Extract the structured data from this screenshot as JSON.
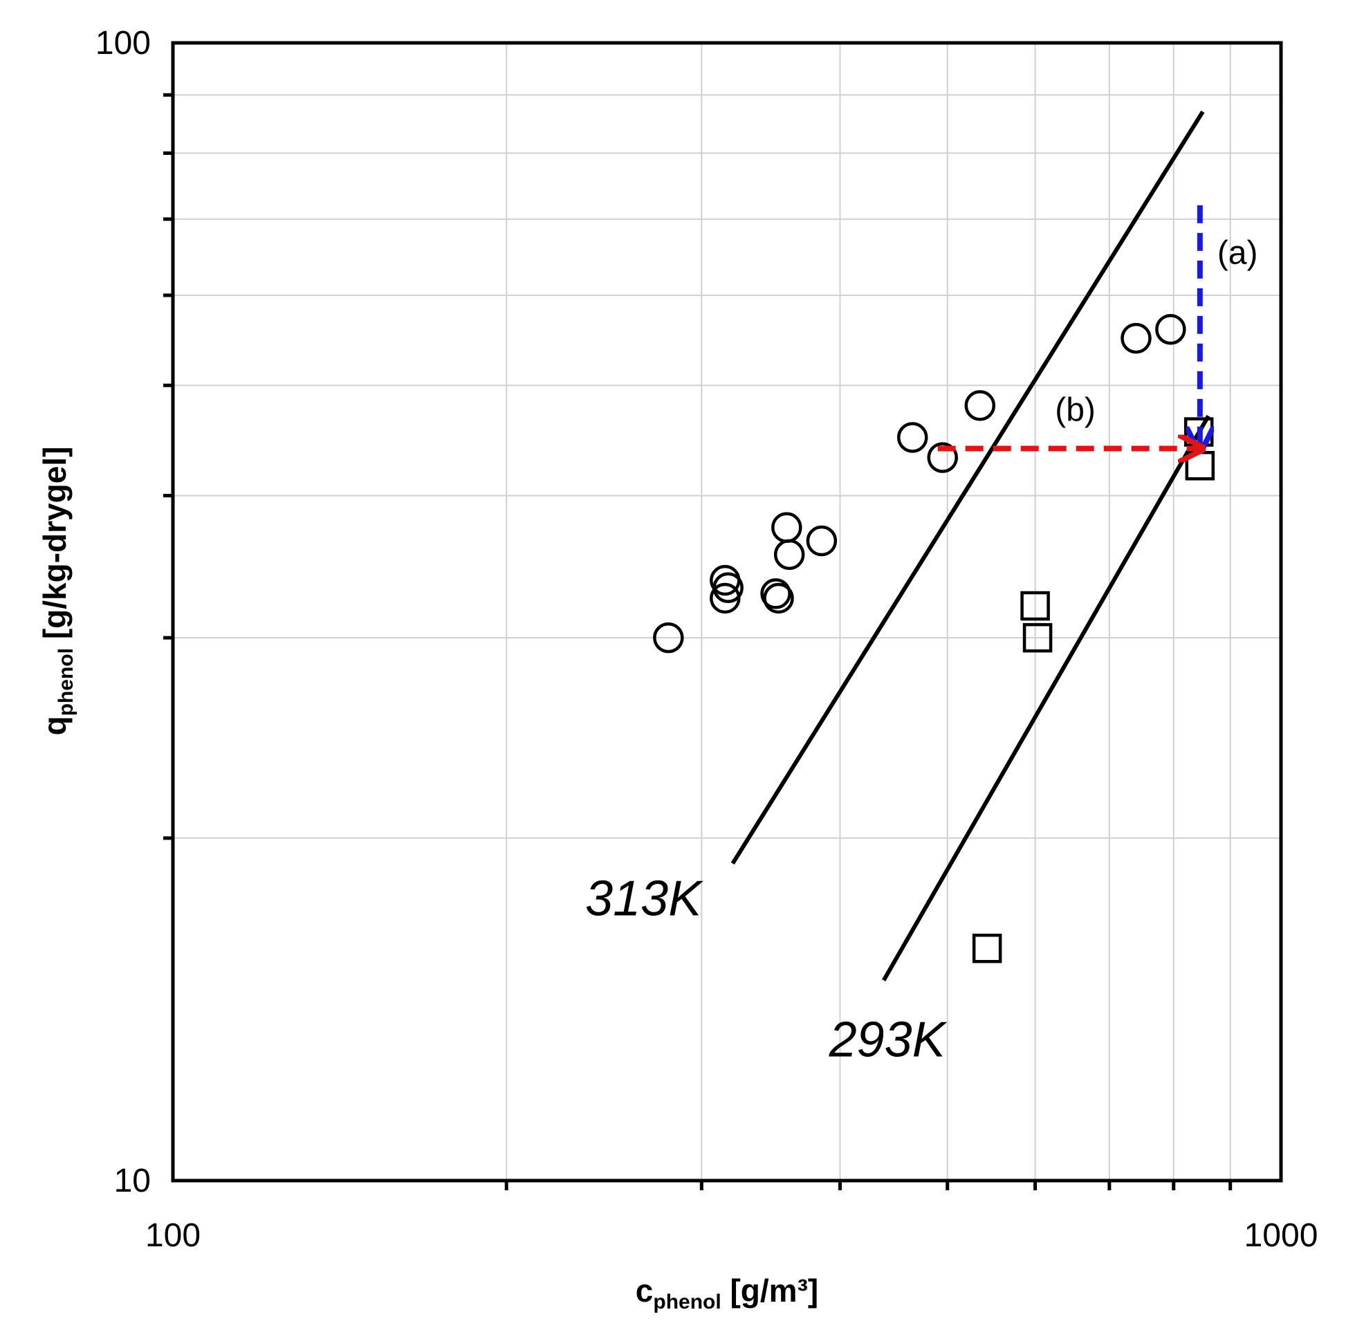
{
  "chart_data": {
    "type": "scatter",
    "x_scale": "log",
    "y_scale": "log",
    "xlim": [
      100,
      1000
    ],
    "ylim": [
      10,
      100
    ],
    "grid": true,
    "x_ticks": [
      "100",
      "1000"
    ],
    "y_ticks": [
      "10",
      "100"
    ],
    "xlabel": {
      "main": "c",
      "sub": "phenol",
      "unit": " [g/m³]"
    },
    "ylabel": {
      "main": "q",
      "sub": "phenol",
      "unit": " [g/kg-drygel]"
    },
    "series": [
      {
        "name": "313K",
        "marker": "circle",
        "points": [
          [
            280,
            30
          ],
          [
            315,
            32.5
          ],
          [
            317,
            33.2
          ],
          [
            315,
            33.7
          ],
          [
            350,
            32.8
          ],
          [
            352,
            32.5
          ],
          [
            360,
            35.5
          ],
          [
            358,
            37.5
          ],
          [
            385,
            36.5
          ],
          [
            465,
            45
          ],
          [
            495,
            43.2
          ],
          [
            535,
            48
          ],
          [
            740,
            55
          ],
          [
            795,
            56
          ]
        ],
        "fit_line": [
          [
            320,
            19.0
          ],
          [
            850,
            87
          ]
        ]
      },
      {
        "name": "293K",
        "marker": "square",
        "points": [
          [
            543,
            16.0
          ],
          [
            600,
            32.0
          ],
          [
            603,
            30.0
          ],
          [
            843,
            45.5
          ],
          [
            845,
            42.5
          ]
        ],
        "fit_line": [
          [
            438,
            15.0
          ],
          [
            860,
            47
          ]
        ]
      }
    ],
    "annotations": [
      {
        "label": "(a)",
        "color": "#1a1adc",
        "from": [
          845,
          72
        ],
        "to": [
          845,
          44
        ]
      },
      {
        "label": "(b)",
        "color": "#e01515",
        "from": [
          490,
          44.0
        ],
        "to": [
          845,
          44.0
        ]
      }
    ]
  }
}
